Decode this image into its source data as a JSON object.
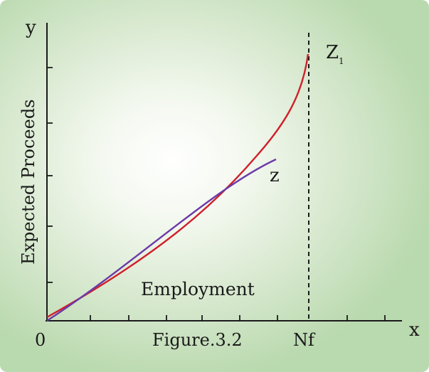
{
  "figure": {
    "caption": "Figure.3.2",
    "y_axis_letter": "y",
    "x_axis_letter": "x",
    "y_axis_label": "Expected Proceeds",
    "x_axis_label": "Employment",
    "origin_label": "0",
    "nf_label": "Nf",
    "curve_z1_label": "Z",
    "curve_z1_subscript": "1",
    "curve_z_label": "z",
    "colors": {
      "curve_z1": "#d0202a",
      "curve_z": "#6a3aa8",
      "axes": "#1a1a1a",
      "background_center": "#ffffff",
      "background_edge": "#b9d9ae"
    }
  }
}
